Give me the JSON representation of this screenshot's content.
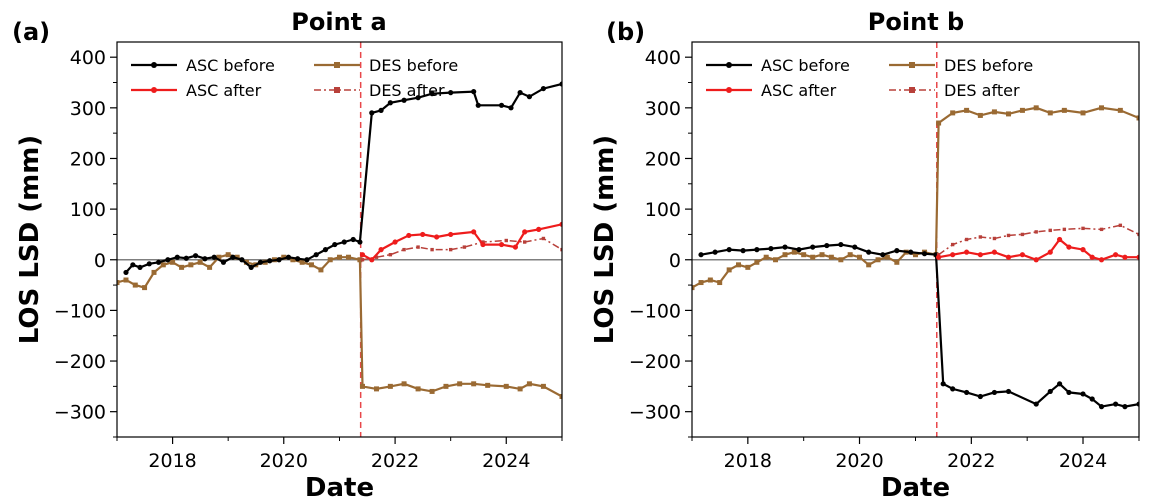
{
  "chart_data": [
    {
      "panel": "(a)",
      "type": "line",
      "title": "Point a",
      "xlabel": "Date",
      "ylabel": "LOS LSD (mm)",
      "xlim": [
        "2017-01-01",
        "2025-01-01"
      ],
      "ylim": [
        -350,
        430
      ],
      "xticks": [
        "2018",
        "2020",
        "2022",
        "2024"
      ],
      "yticks": [
        "400",
        "300",
        "200",
        "100",
        "0",
        "−100",
        "−200",
        "−300"
      ],
      "grid": false,
      "legend_position": "top-left",
      "event_line": {
        "x": "2021-05-20",
        "color": "#e8474a"
      },
      "zero_line": {
        "y": 0,
        "color": "#7f7f7f"
      },
      "series": [
        {
          "name": "ASC before",
          "color": "#000000",
          "marker": "circle",
          "style": "solid",
          "points": [
            [
              "2017-03-01",
              -25
            ],
            [
              "2017-04-15",
              -10
            ],
            [
              "2017-06-01",
              -15
            ],
            [
              "2017-08-01",
              -8
            ],
            [
              "2017-10-01",
              -5
            ],
            [
              "2017-12-01",
              0
            ],
            [
              "2018-02-01",
              5
            ],
            [
              "2018-04-01",
              3
            ],
            [
              "2018-06-01",
              8
            ],
            [
              "2018-08-01",
              2
            ],
            [
              "2018-10-01",
              5
            ],
            [
              "2018-12-01",
              -5
            ],
            [
              "2019-02-01",
              5
            ],
            [
              "2019-04-01",
              0
            ],
            [
              "2019-06-01",
              -15
            ],
            [
              "2019-08-01",
              -5
            ],
            [
              "2019-10-01",
              -2
            ],
            [
              "2019-12-01",
              0
            ],
            [
              "2020-02-01",
              5
            ],
            [
              "2020-04-01",
              2
            ],
            [
              "2020-06-01",
              0
            ],
            [
              "2020-08-01",
              10
            ],
            [
              "2020-10-01",
              20
            ],
            [
              "2020-12-01",
              30
            ],
            [
              "2021-02-01",
              35
            ],
            [
              "2021-04-01",
              40
            ],
            [
              "2021-05-15",
              35
            ],
            [
              "2021-08-01",
              290
            ],
            [
              "2021-10-01",
              295
            ],
            [
              "2021-12-01",
              310
            ],
            [
              "2022-03-01",
              315
            ],
            [
              "2022-06-01",
              320
            ],
            [
              "2022-09-01",
              328
            ],
            [
              "2023-01-01",
              330
            ],
            [
              "2023-06-01",
              332
            ],
            [
              "2023-07-01",
              305
            ],
            [
              "2023-12-01",
              305
            ],
            [
              "2024-02-01",
              300
            ],
            [
              "2024-04-01",
              330
            ],
            [
              "2024-06-01",
              322
            ],
            [
              "2024-09-01",
              338
            ],
            [
              "2025-01-01",
              347
            ]
          ]
        },
        {
          "name": "DES before",
          "color": "#9a6a33",
          "marker": "square",
          "style": "solid",
          "points": [
            [
              "2017-01-01",
              -45
            ],
            [
              "2017-03-01",
              -40
            ],
            [
              "2017-05-01",
              -50
            ],
            [
              "2017-07-01",
              -55
            ],
            [
              "2017-09-01",
              -25
            ],
            [
              "2017-11-01",
              -10
            ],
            [
              "2018-01-01",
              -5
            ],
            [
              "2018-03-01",
              -15
            ],
            [
              "2018-05-01",
              -10
            ],
            [
              "2018-07-01",
              -5
            ],
            [
              "2018-09-01",
              -15
            ],
            [
              "2018-11-01",
              5
            ],
            [
              "2019-01-01",
              10
            ],
            [
              "2019-03-01",
              5
            ],
            [
              "2019-05-01",
              -5
            ],
            [
              "2019-07-01",
              -10
            ],
            [
              "2019-09-01",
              -5
            ],
            [
              "2019-11-01",
              0
            ],
            [
              "2020-01-01",
              5
            ],
            [
              "2020-03-01",
              0
            ],
            [
              "2020-05-01",
              -5
            ],
            [
              "2020-07-01",
              -10
            ],
            [
              "2020-09-01",
              -20
            ],
            [
              "2020-11-01",
              0
            ],
            [
              "2021-01-01",
              5
            ],
            [
              "2021-03-01",
              5
            ],
            [
              "2021-05-15",
              0
            ],
            [
              "2021-06-01",
              -250
            ],
            [
              "2021-09-01",
              -255
            ],
            [
              "2021-12-01",
              -250
            ],
            [
              "2022-03-01",
              -245
            ],
            [
              "2022-06-01",
              -255
            ],
            [
              "2022-09-01",
              -260
            ],
            [
              "2022-12-01",
              -250
            ],
            [
              "2023-03-01",
              -245
            ],
            [
              "2023-06-01",
              -245
            ],
            [
              "2023-09-01",
              -248
            ],
            [
              "2024-01-01",
              -250
            ],
            [
              "2024-04-01",
              -255
            ],
            [
              "2024-06-01",
              -245
            ],
            [
              "2024-09-01",
              -250
            ],
            [
              "2025-01-01",
              -270
            ]
          ]
        },
        {
          "name": "ASC after",
          "color": "#ee1c1c",
          "marker": "circle",
          "style": "solid",
          "points": [
            [
              "2021-06-01",
              10
            ],
            [
              "2021-08-01",
              0
            ],
            [
              "2021-10-01",
              20
            ],
            [
              "2022-01-01",
              35
            ],
            [
              "2022-04-01",
              48
            ],
            [
              "2022-07-01",
              50
            ],
            [
              "2022-10-01",
              45
            ],
            [
              "2023-01-01",
              50
            ],
            [
              "2023-06-01",
              55
            ],
            [
              "2023-08-01",
              30
            ],
            [
              "2023-12-01",
              30
            ],
            [
              "2024-03-01",
              25
            ],
            [
              "2024-05-01",
              55
            ],
            [
              "2024-08-01",
              60
            ],
            [
              "2025-01-01",
              70
            ]
          ]
        },
        {
          "name": "DES after",
          "color": "#b8403a",
          "marker": "square",
          "style": "dashdot",
          "points": [
            [
              "2021-06-01",
              0
            ],
            [
              "2021-09-01",
              5
            ],
            [
              "2021-12-01",
              10
            ],
            [
              "2022-03-01",
              20
            ],
            [
              "2022-06-01",
              25
            ],
            [
              "2022-09-01",
              20
            ],
            [
              "2023-01-01",
              20
            ],
            [
              "2023-04-01",
              25
            ],
            [
              "2023-08-01",
              35
            ],
            [
              "2024-01-01",
              38
            ],
            [
              "2024-05-01",
              35
            ],
            [
              "2024-09-01",
              42
            ],
            [
              "2025-01-01",
              20
            ]
          ]
        }
      ]
    },
    {
      "panel": "(b)",
      "type": "line",
      "title": "Point b",
      "xlabel": "Date",
      "ylabel": "LOS LSD (mm)",
      "xlim": [
        "2017-01-01",
        "2025-01-01"
      ],
      "ylim": [
        -350,
        430
      ],
      "xticks": [
        "2018",
        "2020",
        "2022",
        "2024"
      ],
      "yticks": [
        "400",
        "300",
        "200",
        "100",
        "0",
        "−100",
        "−200",
        "−300"
      ],
      "grid": false,
      "legend_position": "top-left",
      "event_line": {
        "x": "2021-05-20",
        "color": "#e8474a"
      },
      "zero_line": {
        "y": 0,
        "color": "#7f7f7f"
      },
      "series": [
        {
          "name": "ASC before",
          "color": "#000000",
          "marker": "circle",
          "style": "solid",
          "points": [
            [
              "2017-03-01",
              10
            ],
            [
              "2017-06-01",
              15
            ],
            [
              "2017-09-01",
              20
            ],
            [
              "2017-12-01",
              18
            ],
            [
              "2018-03-01",
              20
            ],
            [
              "2018-06-01",
              22
            ],
            [
              "2018-09-01",
              25
            ],
            [
              "2018-12-01",
              20
            ],
            [
              "2019-03-01",
              25
            ],
            [
              "2019-06-01",
              28
            ],
            [
              "2019-09-01",
              30
            ],
            [
              "2019-12-01",
              25
            ],
            [
              "2020-03-01",
              15
            ],
            [
              "2020-06-01",
              10
            ],
            [
              "2020-09-01",
              18
            ],
            [
              "2020-12-01",
              15
            ],
            [
              "2021-03-01",
              12
            ],
            [
              "2021-05-15",
              10
            ],
            [
              "2021-07-01",
              -245
            ],
            [
              "2021-09-01",
              -255
            ],
            [
              "2021-12-01",
              -262
            ],
            [
              "2022-03-01",
              -270
            ],
            [
              "2022-06-01",
              -262
            ],
            [
              "2022-09-01",
              -260
            ],
            [
              "2023-03-01",
              -285
            ],
            [
              "2023-06-01",
              -260
            ],
            [
              "2023-08-01",
              -245
            ],
            [
              "2023-10-01",
              -262
            ],
            [
              "2024-01-01",
              -265
            ],
            [
              "2024-03-01",
              -275
            ],
            [
              "2024-05-01",
              -290
            ],
            [
              "2024-08-01",
              -285
            ],
            [
              "2024-10-01",
              -290
            ],
            [
              "2025-01-01",
              -285
            ]
          ]
        },
        {
          "name": "DES before",
          "color": "#9a6a33",
          "marker": "square",
          "style": "solid",
          "points": [
            [
              "2017-01-01",
              -55
            ],
            [
              "2017-03-01",
              -45
            ],
            [
              "2017-05-01",
              -40
            ],
            [
              "2017-07-01",
              -45
            ],
            [
              "2017-09-01",
              -20
            ],
            [
              "2017-11-01",
              -10
            ],
            [
              "2018-01-01",
              -15
            ],
            [
              "2018-03-01",
              -5
            ],
            [
              "2018-05-01",
              5
            ],
            [
              "2018-07-01",
              0
            ],
            [
              "2018-09-01",
              10
            ],
            [
              "2018-11-01",
              15
            ],
            [
              "2019-01-01",
              10
            ],
            [
              "2019-03-01",
              5
            ],
            [
              "2019-05-01",
              10
            ],
            [
              "2019-07-01",
              5
            ],
            [
              "2019-09-01",
              0
            ],
            [
              "2019-11-01",
              10
            ],
            [
              "2020-01-01",
              5
            ],
            [
              "2020-03-01",
              -10
            ],
            [
              "2020-05-01",
              0
            ],
            [
              "2020-07-01",
              5
            ],
            [
              "2020-09-01",
              -5
            ],
            [
              "2020-11-01",
              15
            ],
            [
              "2021-01-01",
              10
            ],
            [
              "2021-03-01",
              15
            ],
            [
              "2021-05-15",
              10
            ],
            [
              "2021-06-01",
              270
            ],
            [
              "2021-09-01",
              290
            ],
            [
              "2021-12-01",
              295
            ],
            [
              "2022-03-01",
              285
            ],
            [
              "2022-06-01",
              292
            ],
            [
              "2022-09-01",
              288
            ],
            [
              "2022-12-01",
              295
            ],
            [
              "2023-03-01",
              300
            ],
            [
              "2023-06-01",
              290
            ],
            [
              "2023-09-01",
              295
            ],
            [
              "2024-01-01",
              290
            ],
            [
              "2024-05-01",
              300
            ],
            [
              "2024-09-01",
              295
            ],
            [
              "2025-01-01",
              280
            ]
          ]
        },
        {
          "name": "ASC after",
          "color": "#ee1c1c",
          "marker": "circle",
          "style": "solid",
          "points": [
            [
              "2021-06-01",
              5
            ],
            [
              "2021-09-01",
              10
            ],
            [
              "2021-12-01",
              15
            ],
            [
              "2022-03-01",
              10
            ],
            [
              "2022-06-01",
              15
            ],
            [
              "2022-09-01",
              5
            ],
            [
              "2022-12-01",
              10
            ],
            [
              "2023-03-01",
              0
            ],
            [
              "2023-06-01",
              15
            ],
            [
              "2023-08-01",
              40
            ],
            [
              "2023-10-01",
              25
            ],
            [
              "2024-01-01",
              20
            ],
            [
              "2024-03-01",
              5
            ],
            [
              "2024-05-01",
              0
            ],
            [
              "2024-08-01",
              10
            ],
            [
              "2024-10-01",
              5
            ],
            [
              "2025-01-01",
              5
            ]
          ]
        },
        {
          "name": "DES after",
          "color": "#b8403a",
          "marker": "square",
          "style": "dashdot",
          "points": [
            [
              "2021-06-01",
              10
            ],
            [
              "2021-09-01",
              30
            ],
            [
              "2021-12-01",
              40
            ],
            [
              "2022-03-01",
              45
            ],
            [
              "2022-06-01",
              42
            ],
            [
              "2022-09-01",
              48
            ],
            [
              "2022-12-01",
              50
            ],
            [
              "2023-03-01",
              55
            ],
            [
              "2023-06-01",
              58
            ],
            [
              "2023-09-01",
              60
            ],
            [
              "2024-01-01",
              62
            ],
            [
              "2024-05-01",
              60
            ],
            [
              "2024-09-01",
              68
            ],
            [
              "2025-01-01",
              50
            ]
          ]
        }
      ]
    }
  ]
}
